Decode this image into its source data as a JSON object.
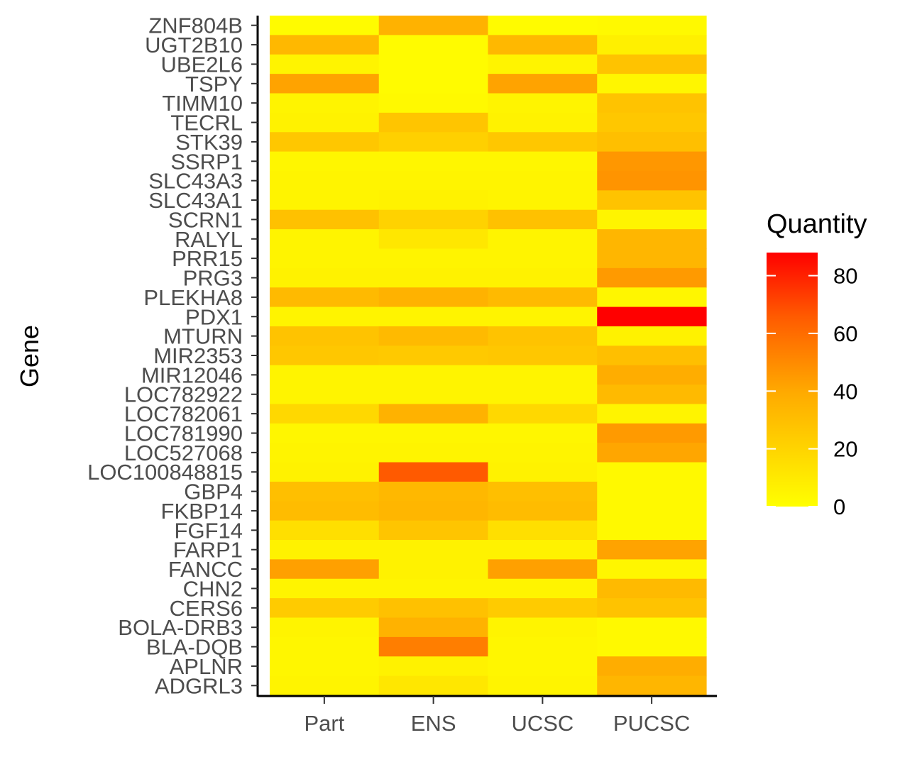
{
  "chart_data": {
    "type": "heatmap",
    "title": "",
    "xlabel": "",
    "ylabel": "Gene",
    "x_categories": [
      "Part",
      "ENS",
      "UCSC",
      "PUCSC"
    ],
    "y_categories": [
      "ZNF804B",
      "UGT2B10",
      "UBE2L6",
      "TSPY",
      "TIMM10",
      "TECRL",
      "STK39",
      "SSRP1",
      "SLC43A3",
      "SLC43A1",
      "SCRN1",
      "RALYL",
      "PRR15",
      "PRG3",
      "PLEKHA8",
      "PDX1",
      "MTURN",
      "MIR2353",
      "MIR12046",
      "LOC782922",
      "LOC782061",
      "LOC781990",
      "LOC527068",
      "LOC100848815",
      "GBP4",
      "FKBP14",
      "FGF14",
      "FARP1",
      "FANCC",
      "CHN2",
      "CERS6",
      "BOLA-DRB3",
      "BLA-DQB",
      "APLNR",
      "ADGRL3"
    ],
    "values": [
      [
        2,
        36,
        2,
        3
      ],
      [
        33,
        2,
        33,
        7
      ],
      [
        5,
        2,
        5,
        28
      ],
      [
        42,
        2,
        42,
        4
      ],
      [
        5,
        3,
        5,
        28
      ],
      [
        6,
        27,
        6,
        26
      ],
      [
        26,
        22,
        26,
        30
      ],
      [
        4,
        4,
        4,
        46
      ],
      [
        5,
        5,
        5,
        47
      ],
      [
        5,
        6,
        5,
        28
      ],
      [
        29,
        21,
        29,
        5
      ],
      [
        5,
        11,
        5,
        34
      ],
      [
        5,
        5,
        5,
        34
      ],
      [
        6,
        6,
        6,
        45
      ],
      [
        32,
        36,
        32,
        4
      ],
      [
        5,
        5,
        5,
        88
      ],
      [
        28,
        32,
        28,
        6
      ],
      [
        26,
        25,
        26,
        30
      ],
      [
        5,
        5,
        5,
        38
      ],
      [
        5,
        5,
        5,
        32
      ],
      [
        18,
        36,
        18,
        5
      ],
      [
        4,
        4,
        4,
        45
      ],
      [
        5,
        5,
        5,
        41
      ],
      [
        6,
        66,
        6,
        3
      ],
      [
        30,
        33,
        30,
        3
      ],
      [
        31,
        34,
        31,
        3
      ],
      [
        15,
        27,
        15,
        3
      ],
      [
        6,
        6,
        6,
        42
      ],
      [
        43,
        6,
        43,
        4
      ],
      [
        5,
        5,
        5,
        32
      ],
      [
        24,
        29,
        24,
        28
      ],
      [
        5,
        36,
        5,
        3
      ],
      [
        4,
        54,
        4,
        3
      ],
      [
        4,
        6,
        4,
        38
      ],
      [
        5,
        11,
        5,
        34
      ]
    ],
    "legend": {
      "title": "Quantity",
      "position": "right",
      "ticks": [
        0,
        20,
        40,
        60,
        80
      ],
      "range": [
        0,
        88
      ]
    },
    "colors": {
      "low": "#FFFF00",
      "high": "#FF0000"
    },
    "grid": false
  }
}
